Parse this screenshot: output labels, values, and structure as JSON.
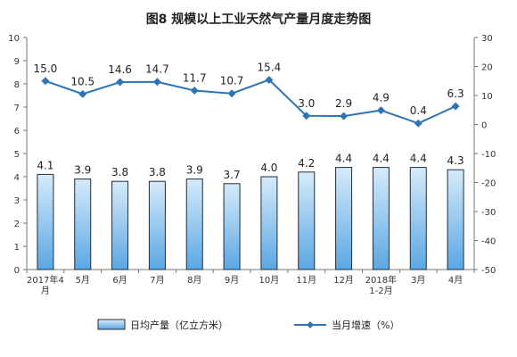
{
  "chart_data": {
    "type": "bar+line",
    "title": "图8  规模以上工业天然气产量月度走势图",
    "categories": [
      [
        "2017年4",
        "月"
      ],
      [
        "5月"
      ],
      [
        "6月"
      ],
      [
        "7月"
      ],
      [
        "8月"
      ],
      [
        "9月"
      ],
      [
        "10月"
      ],
      [
        "11月"
      ],
      [
        "12月"
      ],
      [
        "2018年",
        "1-2月"
      ],
      [
        "3月"
      ],
      [
        "4月"
      ]
    ],
    "left_axis": {
      "ylim": [
        0,
        10
      ],
      "ticks": [
        0,
        1,
        2,
        3,
        4,
        5,
        6,
        7,
        8,
        9,
        10
      ]
    },
    "right_axis": {
      "ylim": [
        -50,
        30
      ],
      "ticks": [
        -50,
        -40,
        -30,
        -20,
        -10,
        0,
        10,
        20,
        30
      ]
    },
    "series": [
      {
        "name": "日均产量（亿立方米）",
        "type": "bar",
        "axis": "left",
        "values": [
          4.1,
          3.9,
          3.8,
          3.8,
          3.9,
          3.7,
          4.0,
          4.2,
          4.4,
          4.4,
          4.4,
          4.3
        ],
        "labels": [
          "4.1",
          "3.9",
          "3.8",
          "3.8",
          "3.9",
          "3.7",
          "4.0",
          "4.2",
          "4.4",
          "4.4",
          "4.4",
          "4.3"
        ]
      },
      {
        "name": "当月增速（%）",
        "type": "line",
        "axis": "right",
        "values": [
          15.0,
          10.5,
          14.6,
          14.7,
          11.7,
          10.7,
          15.4,
          3.0,
          2.9,
          4.9,
          0.4,
          6.3
        ],
        "labels": [
          "15.0",
          "10.5",
          "14.6",
          "14.7",
          "11.7",
          "10.7",
          "15.4",
          "3.0",
          "2.9",
          "4.9",
          "0.4",
          "6.3"
        ]
      }
    ],
    "grid": false,
    "legend_position": "bottom",
    "colors": {
      "bar_fill_top": "#d6ebfa",
      "bar_fill_bottom": "#5aa7e3",
      "bar_stroke": "#1f2d3d",
      "line": "#2e75b6"
    }
  }
}
